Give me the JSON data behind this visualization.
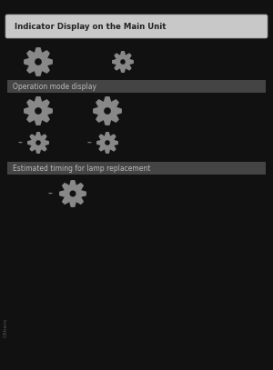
{
  "bg_color": "#111111",
  "title_box_text": "Indicator Display on the Main Unit",
  "title_box_bg": "#c8c8c8",
  "title_box_color": "#222222",
  "section1_text": "Operation mode display",
  "section1_bg": "#444444",
  "section1_color": "#bbbbbb",
  "section2_text": "Estimated timing for lamp replacement",
  "section2_bg": "#444444",
  "section2_color": "#bbbbbb",
  "gear_color": "#888888",
  "dash_color": "#777777",
  "sidebar_text": "Others",
  "sidebar_color": "#555555",
  "figw": 3.0,
  "figh": 4.07,
  "dpi": 100
}
